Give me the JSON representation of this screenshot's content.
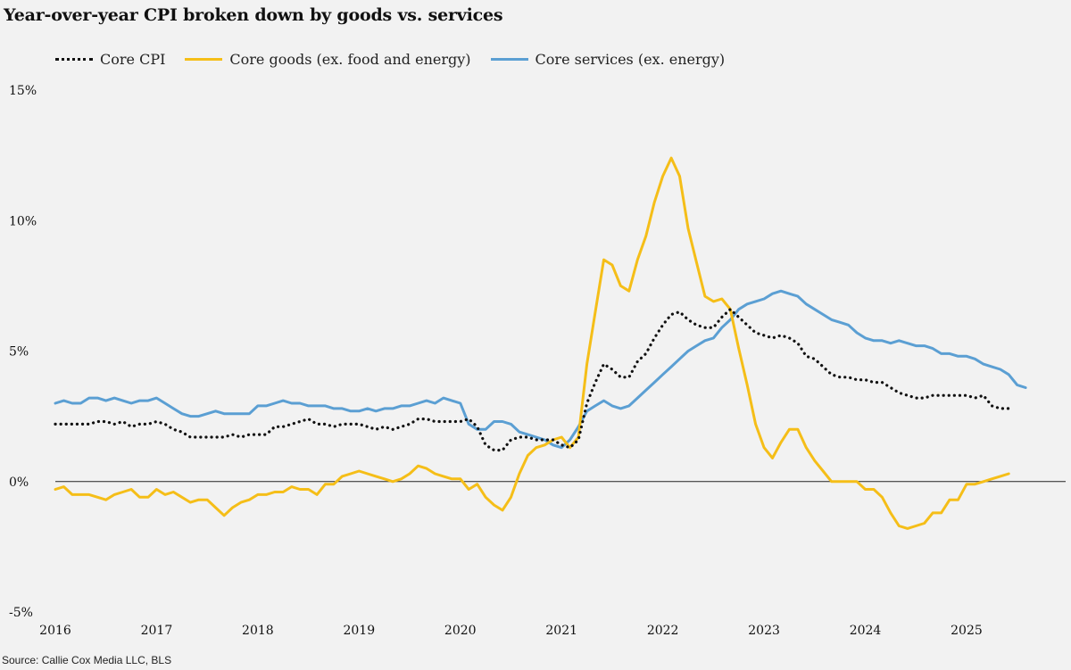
{
  "chart_data": {
    "type": "line",
    "title": "Year-over-year CPI broken down by goods vs. services",
    "source": "Source: Callie Cox Media LLC, BLS",
    "xlabel": "",
    "ylabel": "",
    "xlim": [
      2016.0,
      2025.45
    ],
    "ylim": [
      -5,
      15
    ],
    "x_ticks": [
      2016,
      2017,
      2018,
      2019,
      2020,
      2021,
      2022,
      2023,
      2024,
      2025
    ],
    "x_tick_labels": [
      "2016",
      "2017",
      "2018",
      "2019",
      "2020",
      "2021",
      "2022",
      "2023",
      "2024",
      "2025"
    ],
    "y_ticks": [
      15,
      10,
      5,
      0,
      -5
    ],
    "y_tick_labels": [
      "15%",
      "10%",
      "5%",
      "0%",
      "-5%"
    ],
    "zero_line": true,
    "legend_position": "top-left",
    "x_start": 2016.0,
    "x_step": 0.0833333,
    "series": [
      {
        "name": "Core CPI",
        "color": "#111111",
        "style": "dotted",
        "values": [
          2.2,
          2.2,
          2.2,
          2.2,
          2.2,
          2.3,
          2.3,
          2.2,
          2.3,
          2.1,
          2.2,
          2.2,
          2.3,
          2.2,
          2.0,
          1.9,
          1.7,
          1.7,
          1.7,
          1.7,
          1.7,
          1.8,
          1.7,
          1.8,
          1.8,
          1.8,
          2.1,
          2.1,
          2.2,
          2.3,
          2.4,
          2.2,
          2.2,
          2.1,
          2.2,
          2.2,
          2.2,
          2.1,
          2.0,
          2.1,
          2.0,
          2.1,
          2.2,
          2.4,
          2.4,
          2.3,
          2.3,
          2.3,
          2.3,
          2.4,
          2.1,
          1.4,
          1.2,
          1.2,
          1.6,
          1.7,
          1.7,
          1.6,
          1.6,
          1.6,
          1.4,
          1.3,
          1.6,
          3.0,
          3.8,
          4.5,
          4.3,
          4.0,
          4.0,
          4.6,
          4.9,
          5.5,
          6.0,
          6.4,
          6.5,
          6.2,
          6.0,
          5.9,
          5.9,
          6.3,
          6.6,
          6.3,
          6.0,
          5.7,
          5.6,
          5.5,
          5.6,
          5.5,
          5.3,
          4.8,
          4.7,
          4.4,
          4.1,
          4.0,
          4.0,
          3.9,
          3.9,
          3.8,
          3.8,
          3.6,
          3.4,
          3.3,
          3.2,
          3.2,
          3.3,
          3.3,
          3.3,
          3.3,
          3.3,
          3.2,
          3.3,
          2.9,
          2.8,
          2.8
        ],
        "x_offset": 0
      },
      {
        "name": "Core goods (ex. food and energy)",
        "color": "#f5be18",
        "style": "solid",
        "values": [
          -0.3,
          -0.2,
          -0.5,
          -0.5,
          -0.5,
          -0.6,
          -0.7,
          -0.5,
          -0.4,
          -0.3,
          -0.6,
          -0.6,
          -0.3,
          -0.5,
          -0.4,
          -0.6,
          -0.8,
          -0.7,
          -0.7,
          -1.0,
          -1.3,
          -1.0,
          -0.8,
          -0.7,
          -0.5,
          -0.5,
          -0.4,
          -0.4,
          -0.2,
          -0.3,
          -0.3,
          -0.5,
          -0.1,
          -0.1,
          0.2,
          0.3,
          0.4,
          0.3,
          0.2,
          0.1,
          0.0,
          0.1,
          0.3,
          0.6,
          0.5,
          0.3,
          0.2,
          0.1,
          0.1,
          -0.3,
          -0.1,
          -0.6,
          -0.9,
          -1.1,
          -0.6,
          0.3,
          1.0,
          1.3,
          1.4,
          1.6,
          1.7,
          1.3,
          1.7,
          4.5,
          6.5,
          8.5,
          8.3,
          7.5,
          7.3,
          8.5,
          9.4,
          10.7,
          11.7,
          12.4,
          11.7,
          9.7,
          8.4,
          7.1,
          6.9,
          7.0,
          6.6,
          5.1,
          3.7,
          2.2,
          1.3,
          0.9,
          1.5,
          2.0,
          2.0,
          1.3,
          0.8,
          0.4,
          0.0,
          0.0,
          0.0,
          0.0,
          -0.3,
          -0.3,
          -0.6,
          -1.2,
          -1.7,
          -1.8,
          -1.7,
          -1.6,
          -1.2,
          -1.2,
          -0.7,
          -0.7,
          -0.1,
          -0.1,
          0.0,
          0.1,
          0.2,
          0.3
        ],
        "x_offset": 0
      },
      {
        "name": "Core services (ex. energy)",
        "color": "#5b9fd3",
        "style": "solid",
        "values": [
          3.0,
          3.1,
          3.0,
          3.0,
          3.2,
          3.2,
          3.1,
          3.2,
          3.1,
          3.0,
          3.1,
          3.1,
          3.2,
          3.0,
          2.8,
          2.6,
          2.5,
          2.5,
          2.6,
          2.7,
          2.6,
          2.6,
          2.6,
          2.6,
          2.9,
          2.9,
          3.0,
          3.1,
          3.0,
          3.0,
          2.9,
          2.9,
          2.9,
          2.8,
          2.8,
          2.7,
          2.7,
          2.8,
          2.7,
          2.8,
          2.8,
          2.9,
          2.9,
          3.0,
          3.1,
          3.0,
          3.2,
          3.1,
          3.0,
          2.2,
          2.0,
          2.0,
          2.3,
          2.3,
          2.2,
          1.9,
          1.8,
          1.7,
          1.6,
          1.4,
          1.3,
          1.6,
          2.1,
          2.7,
          2.9,
          3.1,
          2.9,
          2.8,
          2.9,
          3.2,
          3.5,
          3.8,
          4.1,
          4.4,
          4.7,
          5.0,
          5.2,
          5.4,
          5.5,
          5.9,
          6.2,
          6.6,
          6.8,
          6.9,
          7.0,
          7.2,
          7.3,
          7.2,
          7.1,
          6.8,
          6.6,
          6.4,
          6.2,
          6.1,
          6.0,
          5.7,
          5.5,
          5.4,
          5.4,
          5.3,
          5.4,
          5.3,
          5.2,
          5.2,
          5.1,
          4.9,
          4.9,
          4.8,
          4.8,
          4.7,
          4.5,
          4.4,
          4.3,
          4.1,
          3.7,
          3.6
        ],
        "x_offset": 0
      }
    ]
  }
}
